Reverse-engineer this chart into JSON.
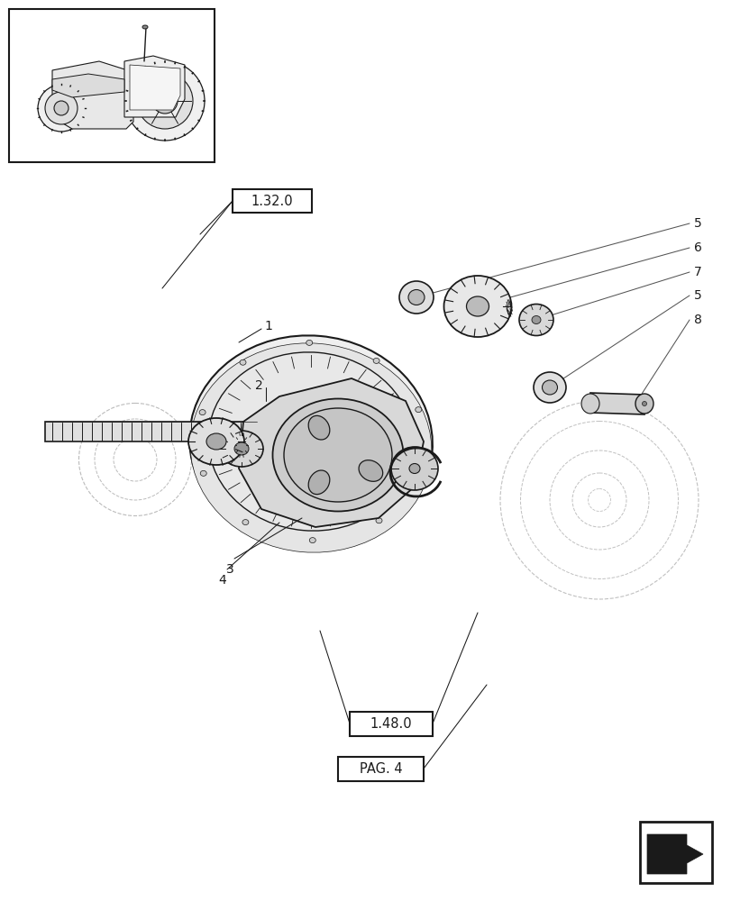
{
  "bg": "#ffffff",
  "lc": "#1a1a1a",
  "gc": "#e8e8e8",
  "dc": "#c0c0c0",
  "labels": {
    "r1": "1.32.0",
    "r2": "1.48.0",
    "r3": "PAG. 4",
    "n1": "1",
    "n2": "2",
    "n3": "3",
    "n4": "4",
    "n5a": "5",
    "n5b": "5",
    "n6": "6",
    "n7": "7",
    "n8": "8"
  }
}
